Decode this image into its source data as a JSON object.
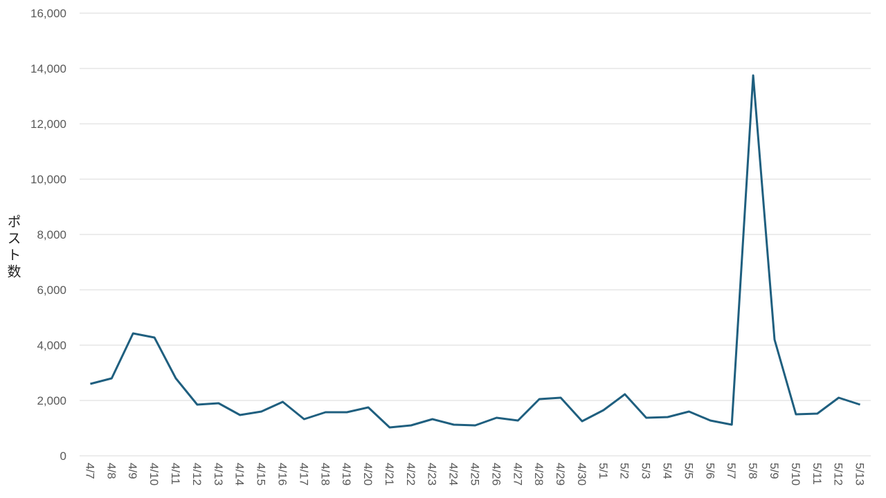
{
  "chart_data": {
    "type": "line",
    "y_label": "ポスト数",
    "categories": [
      "4/7",
      "4/8",
      "4/9",
      "4/10",
      "4/11",
      "4/12",
      "4/13",
      "4/14",
      "4/15",
      "4/16",
      "4/17",
      "4/18",
      "4/19",
      "4/20",
      "4/21",
      "4/22",
      "4/23",
      "4/24",
      "4/25",
      "4/26",
      "4/27",
      "4/28",
      "4/29",
      "4/30",
      "5/1",
      "5/2",
      "5/3",
      "5/4",
      "5/5",
      "5/6",
      "5/7",
      "5/8",
      "5/9",
      "5/10",
      "5/11",
      "5/12",
      "5/13"
    ],
    "series": [
      {
        "color": "#1f5f7f",
        "values": [
          2600,
          2800,
          4425,
          4275,
          2800,
          1850,
          1900,
          1475,
          1600,
          1950,
          1325,
          1575,
          1575,
          1750,
          1025,
          1100,
          1325,
          1125,
          1100,
          1375,
          1275,
          2050,
          2100,
          1250,
          1650,
          2225,
          1375,
          1400,
          1600,
          1275,
          1125,
          13750,
          4200,
          1500,
          1525,
          2100,
          1850
        ]
      }
    ],
    "ylim": [
      0,
      16000
    ],
    "yticks": [
      0,
      {
        "value": 2000,
        "label": "2,000"
      },
      {
        "value": 4000,
        "label": "4,000"
      },
      {
        "value": 6000,
        "label": "6,000"
      },
      {
        "value": 8000,
        "label": "8,000"
      },
      {
        "value": 10000,
        "label": "10,000"
      },
      {
        "value": 12000,
        "label": "12,000"
      },
      {
        "value": 14000,
        "label": "14,000"
      },
      {
        "value": 16000,
        "label": "16,000"
      }
    ],
    "grid": true
  }
}
